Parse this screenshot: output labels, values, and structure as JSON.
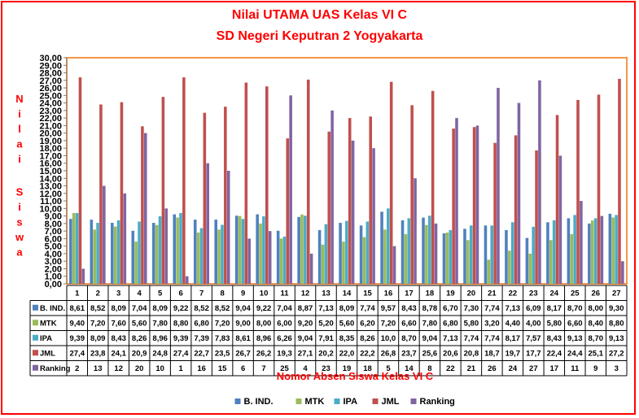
{
  "chart_data": {
    "type": "bar",
    "title": "Nilai UTAMA UAS Kelas VI C",
    "subtitle": "SD Negeri Keputran 2 Yogyakarta",
    "xlabel": "Nomor Absen Siswa Kelas VI C",
    "ylabel": "Nilai Siswa",
    "ylim": [
      0,
      30
    ],
    "ytick_step": 1,
    "ytick_format": "0,00",
    "grid": false,
    "legend_position": "bottom",
    "categories": [
      "1",
      "2",
      "3",
      "4",
      "5",
      "6",
      "7",
      "8",
      "9",
      "10",
      "11",
      "12",
      "13",
      "14",
      "15",
      "16",
      "17",
      "18",
      "19",
      "20",
      "21",
      "22",
      "23",
      "24",
      "25",
      "26",
      "27"
    ],
    "series": [
      {
        "name": "B. IND.",
        "color": "#4f81bd",
        "values": [
          8.61,
          8.52,
          8.09,
          7.04,
          8.09,
          9.22,
          8.52,
          8.52,
          9.04,
          9.22,
          7.04,
          8.87,
          7.13,
          8.09,
          7.74,
          9.57,
          8.43,
          8.78,
          6.7,
          7.3,
          7.74,
          7.13,
          6.09,
          8.17,
          8.7,
          8.0,
          9.3
        ],
        "labels": [
          "8,61",
          "8,52",
          "8,09",
          "7,04",
          "8,09",
          "9,22",
          "8,52",
          "8,52",
          "9,04",
          "9,22",
          "7,04",
          "8,87",
          "7,13",
          "8,09",
          "7,74",
          "9,57",
          "8,43",
          "8,78",
          "6,70",
          "7,30",
          "7,74",
          "7,13",
          "6,09",
          "8,17",
          "8,70",
          "8,00",
          "9,30"
        ]
      },
      {
        "name": "MTK",
        "color": "#9bbb59",
        "values": [
          9.4,
          7.2,
          7.6,
          5.6,
          7.8,
          8.8,
          6.8,
          7.2,
          9.0,
          8.0,
          6.0,
          9.2,
          5.2,
          5.6,
          6.2,
          7.2,
          6.6,
          7.8,
          6.8,
          5.8,
          3.2,
          4.4,
          4.0,
          5.8,
          6.6,
          8.4,
          8.8
        ],
        "labels": [
          "9,40",
          "7,20",
          "7,60",
          "5,60",
          "7,80",
          "8,80",
          "6,80",
          "7,20",
          "9,00",
          "8,00",
          "6,00",
          "9,20",
          "5,20",
          "5,60",
          "6,20",
          "7,20",
          "6,60",
          "7,80",
          "6,80",
          "5,80",
          "3,20",
          "4,40",
          "4,00",
          "5,80",
          "6,60",
          "8,40",
          "8,80"
        ]
      },
      {
        "name": "IPA",
        "color": "#4bacc6",
        "values": [
          9.39,
          8.09,
          8.43,
          8.26,
          8.96,
          9.39,
          7.39,
          7.83,
          8.61,
          8.96,
          6.26,
          9.04,
          7.91,
          8.35,
          8.26,
          10.0,
          8.7,
          9.04,
          7.13,
          7.74,
          7.74,
          8.17,
          7.57,
          8.43,
          9.13,
          8.7,
          9.13
        ],
        "labels": [
          "9,39",
          "8,09",
          "8,43",
          "8,26",
          "8,96",
          "9,39",
          "7,39",
          "7,83",
          "8,61",
          "8,96",
          "6,26",
          "9,04",
          "7,91",
          "8,35",
          "8,26",
          "10,0",
          "8,70",
          "9,04",
          "7,13",
          "7,74",
          "7,74",
          "8,17",
          "7,57",
          "8,43",
          "9,13",
          "8,70",
          "9,13"
        ]
      },
      {
        "name": "JML",
        "color": "#c0504d",
        "values": [
          27.4,
          23.8,
          24.1,
          20.9,
          24.8,
          27.4,
          22.7,
          23.5,
          26.7,
          26.2,
          19.3,
          27.1,
          20.2,
          22.0,
          22.2,
          26.8,
          23.7,
          25.6,
          20.6,
          20.8,
          18.7,
          19.7,
          17.7,
          22.4,
          24.4,
          25.1,
          27.2
        ],
        "labels": [
          "27,4",
          "23,8",
          "24,1",
          "20,9",
          "24,8",
          "27,4",
          "22,7",
          "23,5",
          "26,7",
          "26,2",
          "19,3",
          "27,1",
          "20,2",
          "22,0",
          "22,2",
          "26,8",
          "23,7",
          "25,6",
          "20,6",
          "20,8",
          "18,7",
          "19,7",
          "17,7",
          "22,4",
          "24,4",
          "25,1",
          "27,2"
        ]
      },
      {
        "name": "Ranking",
        "color": "#8064a2",
        "values": [
          2,
          13,
          12,
          20,
          10,
          1,
          16,
          15,
          6,
          7,
          25,
          4,
          23,
          19,
          18,
          5,
          14,
          8,
          22,
          21,
          26,
          24,
          27,
          17,
          11,
          9,
          3
        ],
        "labels": [
          "2",
          "13",
          "12",
          "20",
          "10",
          "1",
          "16",
          "15",
          "6",
          "7",
          "25",
          "4",
          "23",
          "19",
          "18",
          "5",
          "14",
          "8",
          "22",
          "21",
          "26",
          "24",
          "27",
          "17",
          "11",
          "9",
          "3"
        ]
      }
    ],
    "plot_border_color": "#f79646",
    "frame_color": "#ff0000",
    "title_color": "#ff0000"
  }
}
